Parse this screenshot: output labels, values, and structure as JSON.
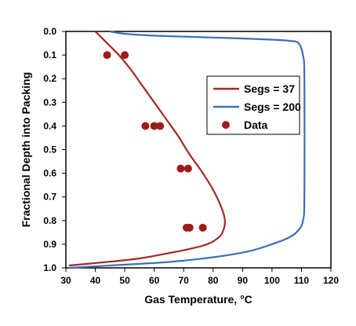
{
  "chart_data": {
    "type": "line",
    "title": "",
    "xlabel": "Gas Temperature, °C",
    "ylabel": "Fractional Depth into Packing",
    "xlim": [
      30,
      120
    ],
    "ylim": [
      1.0,
      0.0
    ],
    "y_axis_inverted": true,
    "x_ticks": [
      30,
      40,
      50,
      60,
      70,
      80,
      90,
      100,
      110,
      120
    ],
    "x_tick_labels": [
      "30",
      "40",
      "50",
      "60",
      "70",
      "80",
      "90",
      "100",
      "110",
      "120"
    ],
    "y_ticks": [
      0.0,
      0.1,
      0.2,
      0.3,
      0.4,
      0.5,
      0.6,
      0.7,
      0.8,
      0.9,
      1.0
    ],
    "y_tick_labels": [
      "0.0",
      "0.1",
      "0.2",
      "0.3",
      "0.4",
      "0.5",
      "0.6",
      "0.7",
      "0.8",
      "0.9",
      "1.0"
    ],
    "grid": false,
    "legend_position": "right",
    "series": [
      {
        "name": "Segs = 37",
        "kind": "line",
        "color": "#A32A24",
        "x": [
          40,
          44,
          48,
          52,
          56,
          60,
          64,
          68,
          72,
          76,
          80,
          83,
          84,
          83.5,
          82,
          78,
          72,
          64,
          55,
          44,
          31
        ],
        "y": [
          0.0,
          0.05,
          0.1,
          0.16,
          0.23,
          0.3,
          0.37,
          0.44,
          0.52,
          0.59,
          0.67,
          0.75,
          0.8,
          0.84,
          0.87,
          0.9,
          0.92,
          0.94,
          0.96,
          0.975,
          0.99
        ]
      },
      {
        "name": "Segs = 200",
        "kind": "line",
        "color": "#3A70B8",
        "x": [
          45,
          50,
          60,
          70,
          80,
          90,
          100,
          106,
          109,
          110.5,
          111,
          111,
          110.5,
          109,
          106,
          100,
          92,
          80,
          65,
          45,
          31
        ],
        "y": [
          0.0,
          0.01,
          0.018,
          0.022,
          0.026,
          0.03,
          0.035,
          0.04,
          0.05,
          0.1,
          0.2,
          0.7,
          0.8,
          0.84,
          0.87,
          0.9,
          0.93,
          0.955,
          0.975,
          0.99,
          1.0
        ]
      },
      {
        "name": "Data",
        "kind": "scatter",
        "color": "#9E1B1B",
        "x": [
          44,
          50,
          57,
          60,
          62,
          69,
          71.5,
          71,
          72,
          76.5
        ],
        "y": [
          0.1,
          0.1,
          0.4,
          0.4,
          0.4,
          0.58,
          0.58,
          0.83,
          0.83,
          0.83
        ]
      }
    ],
    "legend": [
      "Segs = 37",
      "Segs = 200",
      "Data"
    ]
  }
}
